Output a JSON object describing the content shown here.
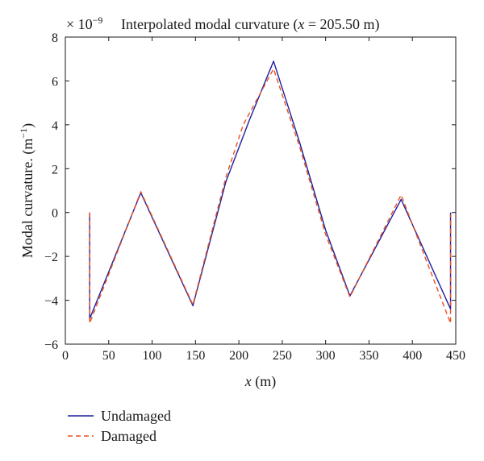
{
  "chart_data": {
    "type": "line",
    "title_prefix": "Interpolated modal curvature (",
    "title_var": "x",
    "title_suffix": " = 205.50 m)",
    "scale_label": "× 10",
    "scale_exp": "−9",
    "xlabel_var": "x",
    "xlabel_unit": " (m)",
    "ylabel": "Modal curvature. (m",
    "ylabel_exp": "−1",
    "ylabel_close": ")",
    "xlim": [
      0,
      450
    ],
    "ylim": [
      -6,
      8
    ],
    "xticks": [
      0,
      50,
      100,
      150,
      200,
      250,
      300,
      350,
      400,
      450
    ],
    "yticks": [
      -6,
      -4,
      -2,
      0,
      2,
      4,
      6,
      8
    ],
    "ytick_labels": [
      "−6",
      "−4",
      "−2",
      "0",
      "2",
      "4",
      "6",
      "8"
    ],
    "grid": false,
    "legend_position": "bottom-left",
    "series": [
      {
        "name": "Undamaged",
        "color": "#1f1f9e",
        "dash": "solid",
        "points": [
          [
            28,
            0
          ],
          [
            28,
            -4.85
          ],
          [
            87,
            0.9
          ],
          [
            147,
            -4.25
          ],
          [
            185,
            1.4
          ],
          [
            212,
            4.2
          ],
          [
            240,
            6.9
          ],
          [
            270,
            3.2
          ],
          [
            300,
            -0.8
          ],
          [
            328,
            -3.8
          ],
          [
            387,
            0.6
          ],
          [
            444,
            -4.4
          ],
          [
            444,
            0
          ]
        ]
      },
      {
        "name": "Damaged",
        "color": "#e8501e",
        "dash": "dashed",
        "points": [
          [
            28,
            0
          ],
          [
            28,
            -5.05
          ],
          [
            87,
            0.95
          ],
          [
            147,
            -4.2
          ],
          [
            185,
            1.6
          ],
          [
            205,
            4.0
          ],
          [
            240,
            6.55
          ],
          [
            270,
            3.0
          ],
          [
            300,
            -1.0
          ],
          [
            328,
            -3.85
          ],
          [
            387,
            0.8
          ],
          [
            444,
            -5.05
          ],
          [
            444,
            -0.1
          ]
        ]
      }
    ]
  }
}
